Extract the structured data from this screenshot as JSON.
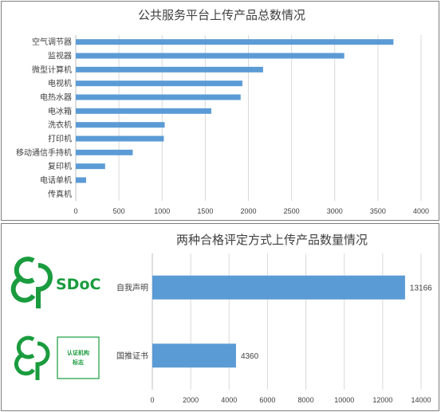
{
  "chart_data": [
    {
      "type": "bar",
      "orientation": "horizontal",
      "title": "公共服务平台上传产品总数情况",
      "categories": [
        "空气调节器",
        "监视器",
        "微型计算机",
        "电视机",
        "电热水器",
        "电冰箱",
        "洗衣机",
        "打印机",
        "移动通信手持机",
        "复印机",
        "电话单机",
        "传真机"
      ],
      "values": [
        3680,
        3110,
        2170,
        1930,
        1910,
        1570,
        1030,
        1020,
        660,
        340,
        120,
        0
      ],
      "xlim": [
        0,
        4000
      ],
      "xticks": [
        0,
        500,
        1000,
        1500,
        2000,
        2500,
        3000,
        3500,
        4000
      ],
      "grid": true,
      "bar_color": "#5b9bd5"
    },
    {
      "type": "bar",
      "orientation": "horizontal",
      "title": "两种合格评定方式上传产品数量情况",
      "categories": [
        "自我声明",
        "国推证书"
      ],
      "values": [
        13166,
        4360
      ],
      "data_labels": [
        "13166",
        "4360"
      ],
      "xlim": [
        0,
        14000
      ],
      "xticks": [
        0,
        2000,
        4000,
        6000,
        8000,
        10000,
        12000,
        14000
      ],
      "grid": true,
      "bar_color": "#5b9bd5"
    }
  ],
  "logos": {
    "sdoc_text": "SDoC",
    "cert_text": "认证机构\n标志",
    "color": "#1a9c3e"
  }
}
